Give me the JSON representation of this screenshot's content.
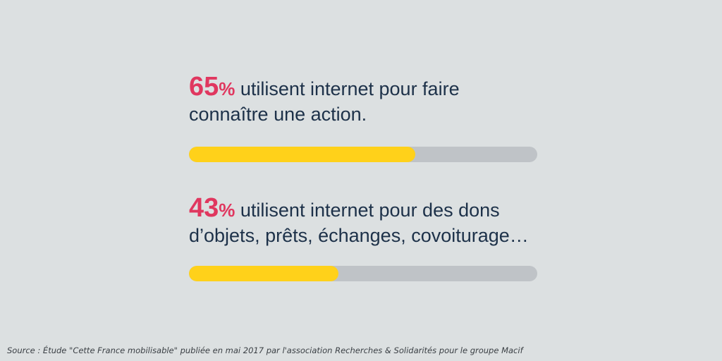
{
  "chart_data": {
    "type": "bar",
    "orientation": "horizontal",
    "title": "",
    "xlim": [
      0,
      100
    ],
    "categories": [
      "utilisent internet pour faire connaître une action.",
      "utilisent internet pour des dons d’objets, prêts, échanges, covoiturage…"
    ],
    "values": [
      65,
      43
    ],
    "unit": "%"
  },
  "stats": [
    {
      "number": "65",
      "percent_sign": "%",
      "line1": " utilisent internet pour faire",
      "line2": "connaître une action."
    },
    {
      "number": "43",
      "percent_sign": "%",
      "line1": " utilisent internet pour des dons",
      "line2": "d’objets, prêts, échanges, covoiturage…"
    }
  ],
  "colors": {
    "background": "#dce0e1",
    "bar_fill": "#ffd11a",
    "bar_track": "#bfc3c7",
    "percent": "#e0375f",
    "text": "#1d3149"
  },
  "source": "Source : Étude \"Cette France mobilisable\" publiée en mai 2017 par l'association Recherches & Solidarités pour le groupe Macif"
}
